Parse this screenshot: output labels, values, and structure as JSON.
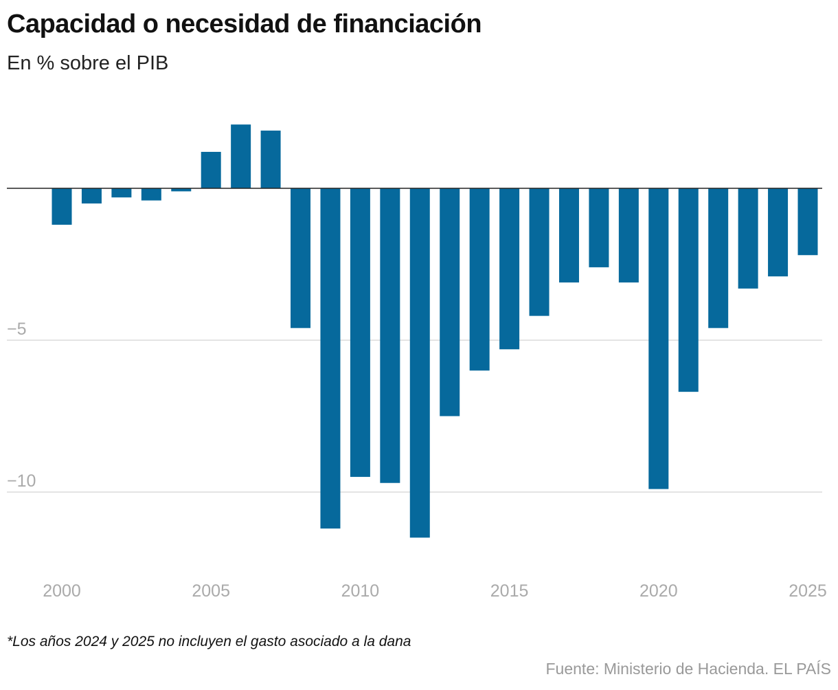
{
  "chart_data": {
    "type": "bar",
    "title": "Capacidad o necesidad de financiación",
    "subtitle": "En % sobre el PIB",
    "categories": [
      2000,
      2001,
      2002,
      2003,
      2004,
      2005,
      2006,
      2007,
      2008,
      2009,
      2010,
      2011,
      2012,
      2013,
      2014,
      2015,
      2016,
      2017,
      2018,
      2019,
      2020,
      2021,
      2022,
      2023,
      2024,
      2025
    ],
    "values": [
      -1.2,
      -0.5,
      -0.3,
      -0.4,
      -0.1,
      1.2,
      2.1,
      1.9,
      -4.6,
      -11.2,
      -9.5,
      -9.7,
      -11.5,
      -7.5,
      -6.0,
      -5.3,
      -4.2,
      -3.1,
      -2.6,
      -3.1,
      -9.9,
      -6.7,
      -4.6,
      -3.3,
      -2.9,
      -2.2
    ],
    "x_ticks": [
      "2000",
      "2005",
      "2010",
      "2015",
      "2020",
      "2025"
    ],
    "y_ticks": [
      {
        "value": -5,
        "label": "−5"
      },
      {
        "value": -10,
        "label": "−10"
      }
    ],
    "ylim": [
      -12,
      3
    ],
    "grid": true,
    "bar_color": "#06699c",
    "note": "*Los años 2024 y 2025 no incluyen el gasto asociado a la dana",
    "source": "Fuente: Ministerio de Hacienda. EL PAÍS"
  }
}
